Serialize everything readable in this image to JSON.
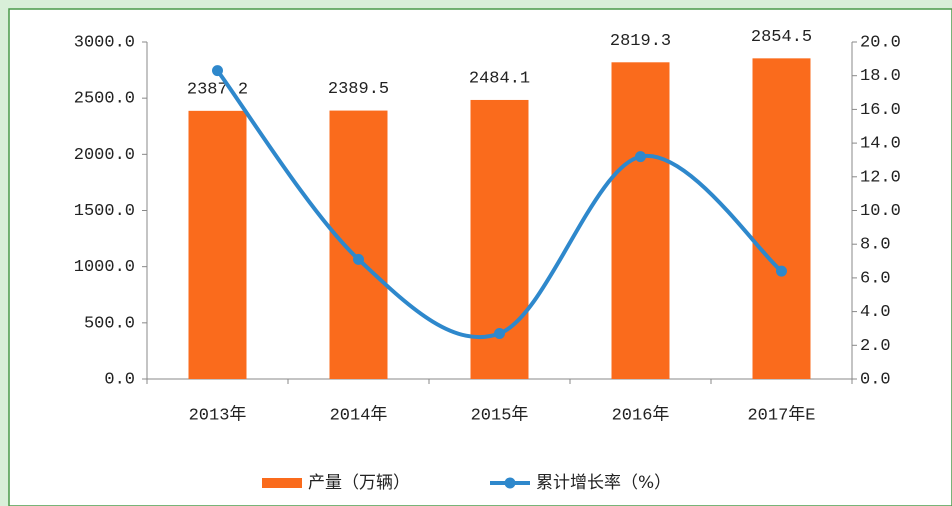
{
  "chart_data": {
    "type": "bar",
    "categories": [
      "2013年",
      "2014年",
      "2015年",
      "2016年",
      "2017年E"
    ],
    "series": [
      {
        "name": "产量（万辆）",
        "color": "#fa6b1c",
        "type": "bar",
        "values": [
          2387.2,
          2389.5,
          2484.1,
          2819.3,
          2854.5
        ]
      },
      {
        "name": "累计增长率（%）",
        "color": "#2e88cc",
        "type": "line",
        "axis": "y2",
        "values": [
          18.3,
          7.1,
          2.7,
          13.2,
          6.4
        ]
      }
    ],
    "ylim": [
      0,
      3000
    ],
    "yticks": [
      {
        "value": 0,
        "label": "0.0"
      },
      {
        "value": 500,
        "label": "500.0"
      },
      {
        "value": 1000,
        "label": "1000.0"
      },
      {
        "value": 1500,
        "label": "1500.0"
      },
      {
        "value": 2000,
        "label": "2000.0"
      },
      {
        "value": 2500,
        "label": "2500.0"
      },
      {
        "value": 3000,
        "label": "3000.0"
      }
    ],
    "y2lim": [
      0,
      20
    ],
    "y2ticks": [
      {
        "value": 0,
        "label": "0.0"
      },
      {
        "value": 2,
        "label": "2.0"
      },
      {
        "value": 4,
        "label": "4.0"
      },
      {
        "value": 6,
        "label": "6.0"
      },
      {
        "value": 8,
        "label": "8.0"
      },
      {
        "value": 10,
        "label": "10.0"
      },
      {
        "value": 12,
        "label": "12.0"
      },
      {
        "value": 14,
        "label": "14.0"
      },
      {
        "value": 16,
        "label": "16.0"
      },
      {
        "value": 18,
        "label": "18.0"
      },
      {
        "value": 20,
        "label": "20.0"
      }
    ],
    "legend": "bottom"
  }
}
